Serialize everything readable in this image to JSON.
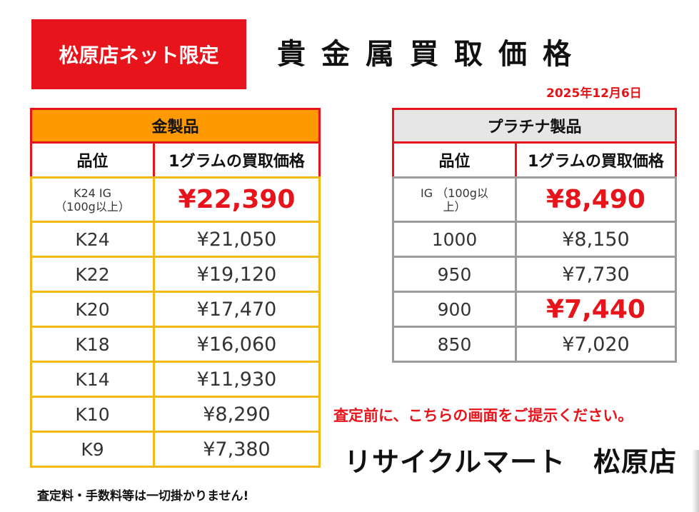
{
  "badge": "松原店ネット限定",
  "title": "貴金属買取価格",
  "date": "2025年12月6日",
  "gold": {
    "header": "金製品",
    "col_grade": "品位",
    "col_price": "1グラムの買取価格",
    "rows": [
      {
        "grade": "K24 IG\n（100g以上）",
        "price": "¥22,390",
        "highlight": true
      },
      {
        "grade": "K24",
        "price": "¥21,050",
        "highlight": false
      },
      {
        "grade": "K22",
        "price": "¥19,120",
        "highlight": false
      },
      {
        "grade": "K20",
        "price": "¥17,470",
        "highlight": false
      },
      {
        "grade": "K18",
        "price": "¥16,060",
        "highlight": false
      },
      {
        "grade": "K14",
        "price": "¥11,930",
        "highlight": false
      },
      {
        "grade": "K10",
        "price": "¥8,290",
        "highlight": false
      },
      {
        "grade": "K9",
        "price": "¥7,380",
        "highlight": false
      }
    ]
  },
  "platinum": {
    "header": "プラチナ製品",
    "col_grade": "品位",
    "col_price": "1グラムの買取価格",
    "rows": [
      {
        "grade": "IG （100g以\n上）",
        "price": "¥8,490",
        "highlight": true
      },
      {
        "grade": "1000",
        "price": "¥8,150",
        "highlight": false
      },
      {
        "grade": "950",
        "price": "¥7,730",
        "highlight": false
      },
      {
        "grade": "900",
        "price": "¥7,440",
        "highlight": true
      },
      {
        "grade": "850",
        "price": "¥7,020",
        "highlight": false
      }
    ]
  },
  "notice": "査定前に、こちらの画面をご提示ください。",
  "store": "リサイクルマート　松原店",
  "fee_note": "査定料・手数料等は一切掛かりません!",
  "colors": {
    "accent_red": "#e8141b",
    "gold_header": "#ff9900",
    "gold_border": "#f5b915",
    "platinum_header": "#e6e6e6",
    "platinum_border": "#9c9c9c"
  }
}
